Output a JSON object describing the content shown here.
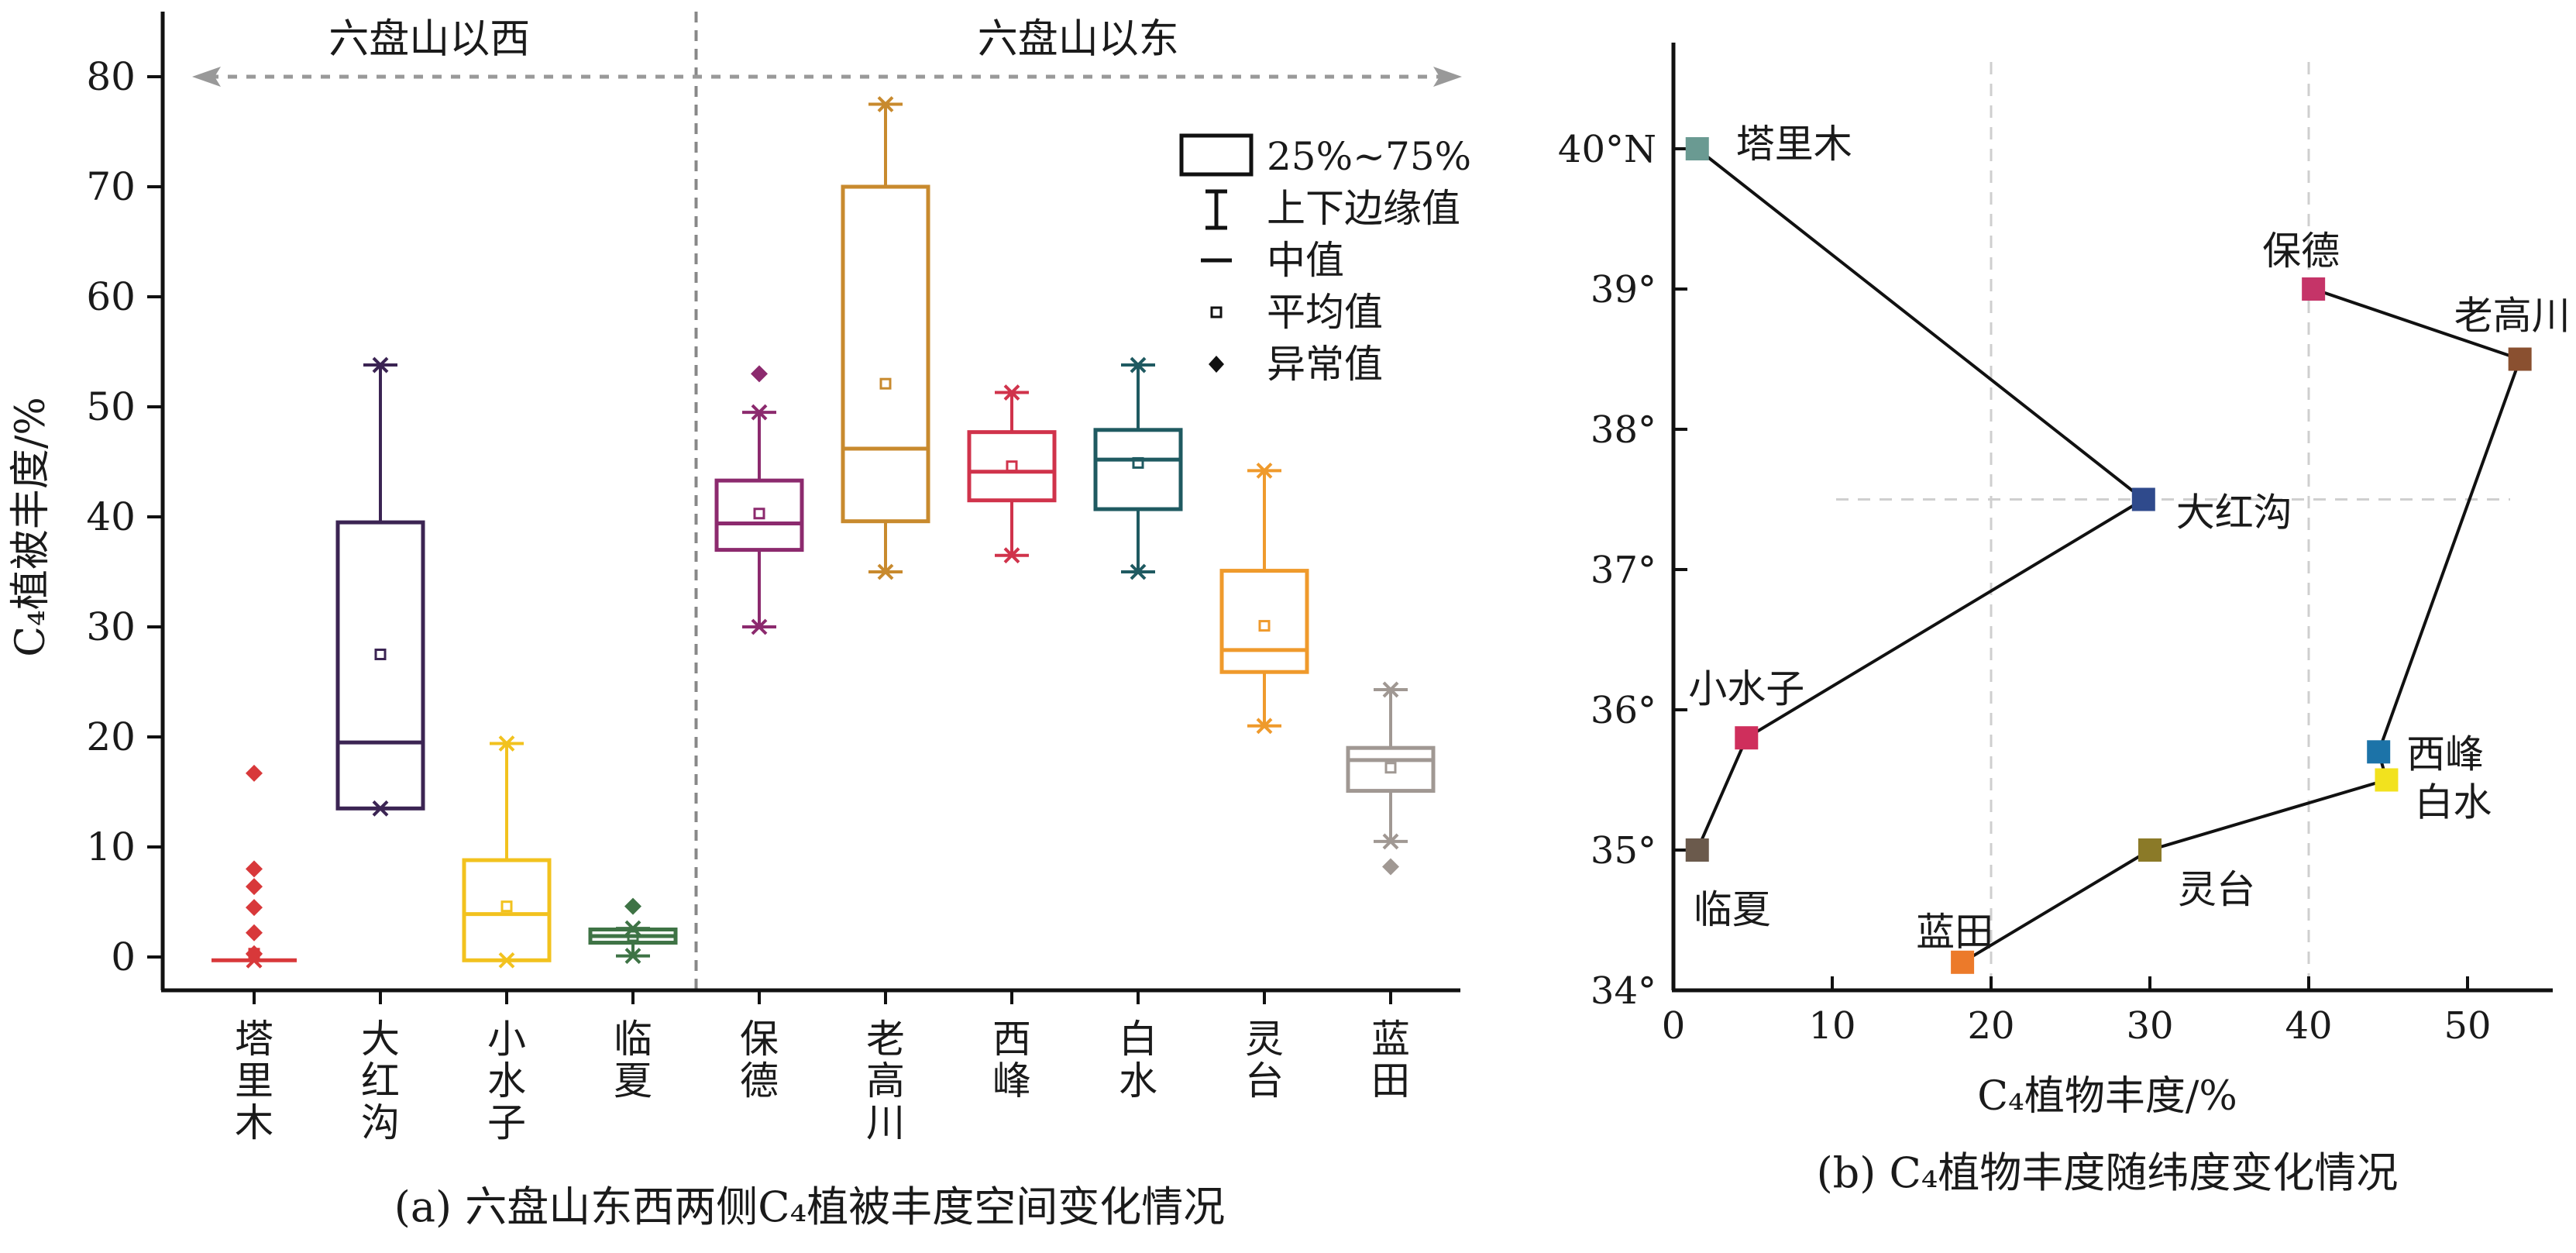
{
  "chart_data": [
    {
      "type": "box",
      "panel_caption": "(a) 六盘山东西两侧C₄植被丰度空间变化情况",
      "ylabel": "C₄植被丰度/%",
      "ylim": [
        -3,
        85
      ],
      "yticks": [
        0,
        10,
        20,
        30,
        40,
        50,
        60,
        70,
        80
      ],
      "grid": false,
      "regions": [
        {
          "label": "六盘山以西",
          "arrow_value": 80
        },
        {
          "label": "六盘山以东",
          "arrow_value": 80
        }
      ],
      "legend": {
        "placement": "top-right",
        "items": [
          {
            "symbol": "box",
            "label": "25%~75%"
          },
          {
            "symbol": "whisker",
            "label": "上下边缘值"
          },
          {
            "symbol": "median",
            "label": "中值"
          },
          {
            "symbol": "mean",
            "label": "平均值"
          },
          {
            "symbol": "outlier",
            "label": "异常值"
          }
        ]
      },
      "categories": [
        "塔里木",
        "大红沟",
        "小水子",
        "临夏",
        "保德",
        "老高川",
        "西峰",
        "白水",
        "灵台",
        "蓝田"
      ],
      "series": [
        {
          "category": "塔里木",
          "color": "#d8383a",
          "min": -0.3,
          "q1": -0.3,
          "median": -0.3,
          "q3": -0.3,
          "max": -0.3,
          "mean": 0.3,
          "outliers": [
            16.7,
            8.0,
            6.4,
            4.5,
            2.2,
            0.3
          ]
        },
        {
          "category": "大红沟",
          "color": "#3b2453",
          "min": 13.5,
          "q1": 13.5,
          "median": 19.5,
          "q3": 39.5,
          "max": 53.8,
          "mean": 27.5,
          "outliers": []
        },
        {
          "category": "小水子",
          "color": "#f2c21e",
          "min": -0.3,
          "q1": -0.3,
          "median": 3.9,
          "q3": 8.8,
          "max": 19.4,
          "mean": 4.6,
          "outliers": []
        },
        {
          "category": "临夏",
          "color": "#3e7345",
          "min": 0.1,
          "q1": 1.3,
          "median": 1.9,
          "q3": 2.5,
          "max": 2.6,
          "mean": 1.9,
          "outliers": [
            4.6
          ]
        },
        {
          "category": "保德",
          "color": "#8c2a6e",
          "min": 30.0,
          "q1": 37.0,
          "median": 39.4,
          "q3": 43.3,
          "max": 49.5,
          "mean": 40.3,
          "outliers": [
            53.0
          ]
        },
        {
          "category": "老高川",
          "color": "#c88a2e",
          "min": 35.0,
          "q1": 39.6,
          "median": 46.2,
          "q3": 70.0,
          "max": 77.5,
          "mean": 52.1,
          "outliers": []
        },
        {
          "category": "西峰",
          "color": "#d0334b",
          "min": 36.5,
          "q1": 41.5,
          "median": 44.1,
          "q3": 47.7,
          "max": 51.3,
          "mean": 44.6,
          "outliers": []
        },
        {
          "category": "白水",
          "color": "#1f5a61",
          "min": 35.0,
          "q1": 40.7,
          "median": 45.2,
          "q3": 47.9,
          "max": 53.8,
          "mean": 44.9,
          "outliers": []
        },
        {
          "category": "灵台",
          "color": "#ef9a2c",
          "min": 21.0,
          "q1": 25.9,
          "median": 27.9,
          "q3": 35.1,
          "max": 44.2,
          "mean": 30.1,
          "outliers": []
        },
        {
          "category": "蓝田",
          "color": "#a09893",
          "min": 10.5,
          "q1": 15.1,
          "median": 17.9,
          "q3": 19.0,
          "max": 24.3,
          "mean": 17.2,
          "outliers": [
            8.2
          ]
        }
      ]
    },
    {
      "type": "scatter",
      "panel_caption": "(b) C₄植物丰度随纬度变化情况",
      "xlabel": "C₄植物丰度/%",
      "ylabel": "",
      "xlim": [
        0,
        55
      ],
      "ylim": [
        34,
        41
      ],
      "xticks": [
        0,
        10,
        20,
        30,
        40,
        50
      ],
      "yticks": [
        34,
        35,
        36,
        37,
        38,
        39,
        40
      ],
      "ytick_labels": [
        "34°",
        "35°",
        "36°",
        "37°",
        "38°",
        "39°",
        "40°N"
      ],
      "grid": "dashed reference lines at x=20, x=40 and y=37.5",
      "ref_lines": {
        "x": [
          20,
          40
        ],
        "y": [
          37.5
        ]
      },
      "points": [
        {
          "label": "塔里木",
          "x": 1.5,
          "y": 40.0,
          "color": "#6a9a92"
        },
        {
          "label": "大红沟",
          "x": 29.6,
          "y": 37.5,
          "color": "#2f4a8c"
        },
        {
          "label": "小水子",
          "x": 4.6,
          "y": 35.8,
          "color": "#cf2f5c"
        },
        {
          "label": "临夏",
          "x": 1.5,
          "y": 35.0,
          "color": "#6b5a4c"
        },
        {
          "label": "保德",
          "x": 40.3,
          "y": 39.0,
          "color": "#c53468"
        },
        {
          "label": "老高川",
          "x": 53.3,
          "y": 38.5,
          "color": "#8a5030"
        },
        {
          "label": "西峰",
          "x": 44.4,
          "y": 35.7,
          "color": "#1c73a8"
        },
        {
          "label": "白水",
          "x": 44.9,
          "y": 35.5,
          "color": "#f2e21e"
        },
        {
          "label": "灵台",
          "x": 30.0,
          "y": 35.0,
          "color": "#8b7a28"
        },
        {
          "label": "蓝田",
          "x": 18.2,
          "y": 34.2,
          "color": "#ec7a2a"
        }
      ],
      "lines": [
        [
          "塔里木",
          "大红沟",
          "小水子",
          "临夏"
        ],
        [
          "保德",
          "老高川",
          "西峰",
          "白水",
          "灵台",
          "蓝田"
        ]
      ]
    }
  ]
}
